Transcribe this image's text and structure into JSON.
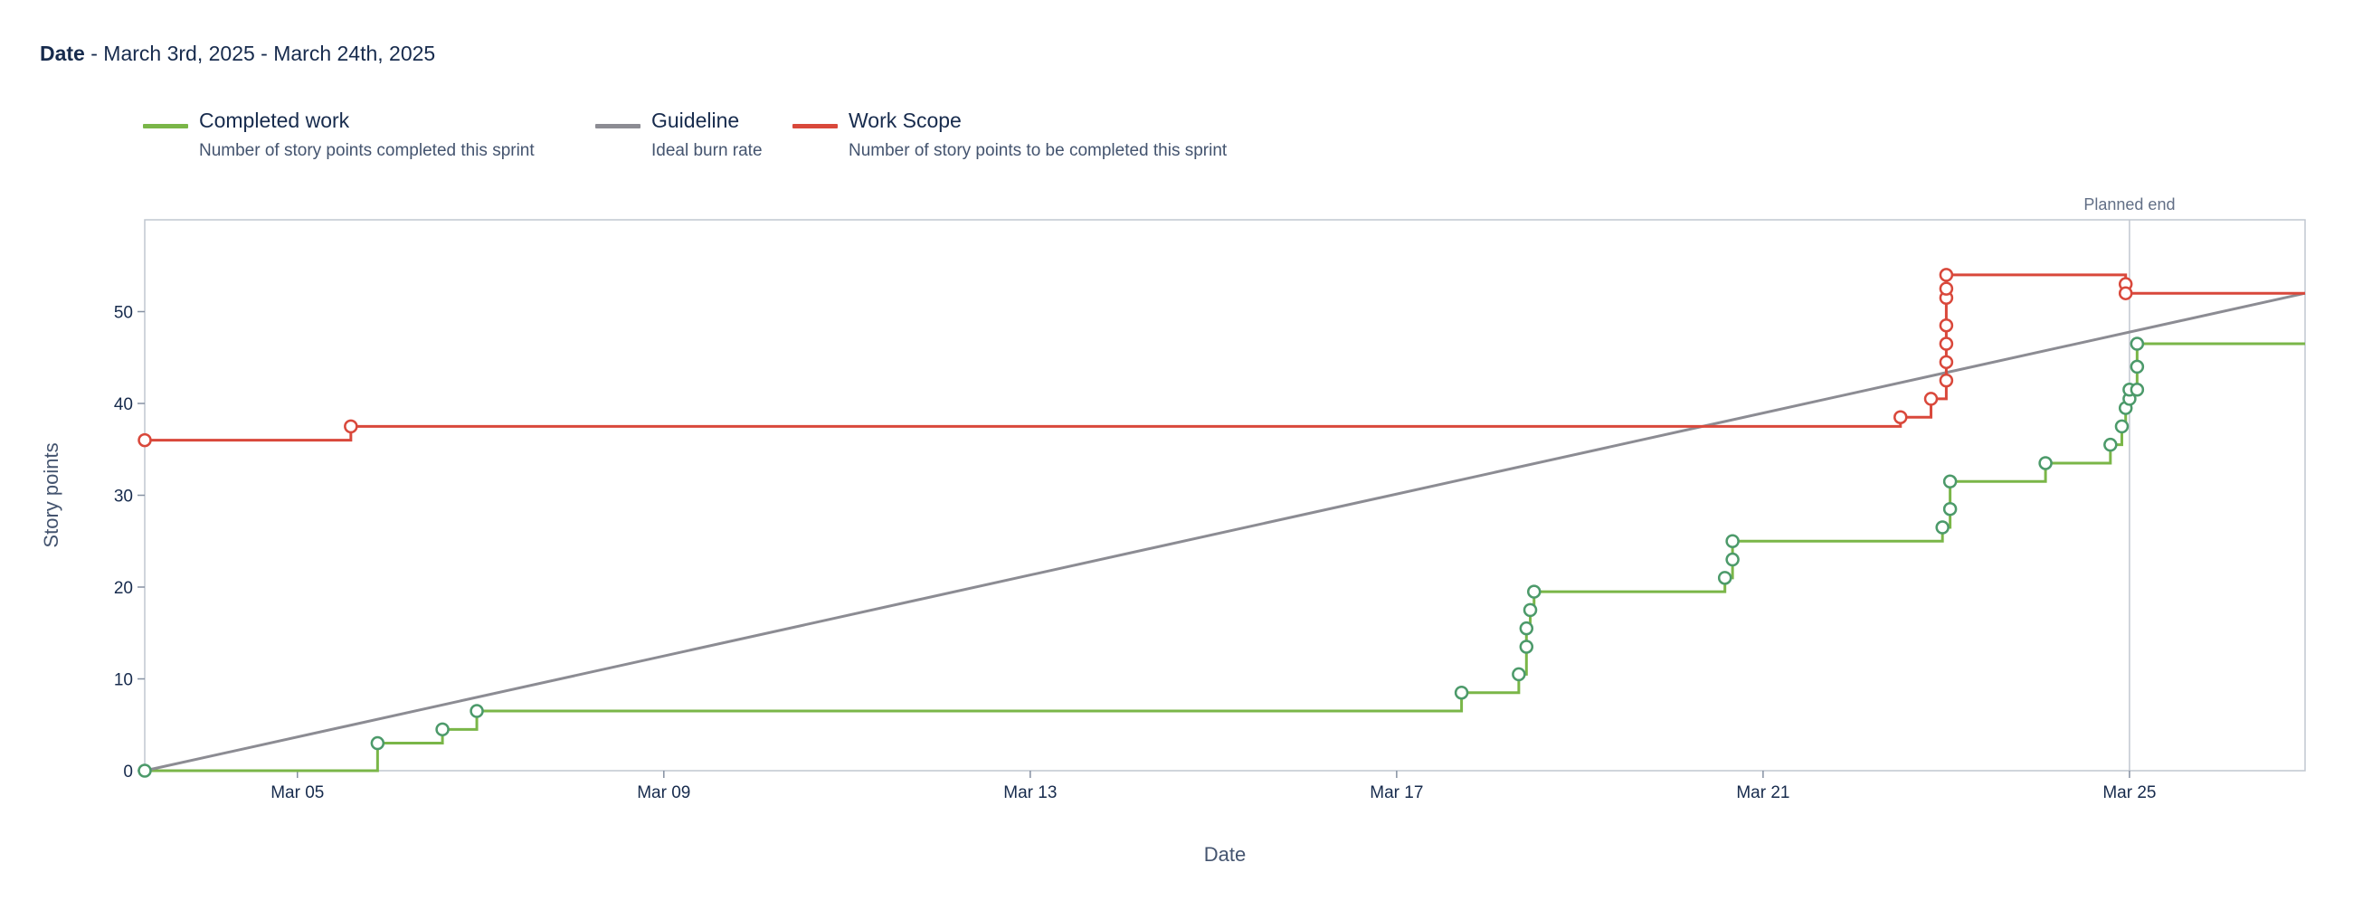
{
  "header": {
    "date_label": "Date",
    "date_range": " - March 3rd, 2025 - March 24th, 2025"
  },
  "legend": [
    {
      "title": "Completed work",
      "description": "Number of story points completed this sprint",
      "color": "#7ab648"
    },
    {
      "title": "Guideline",
      "description": "Ideal burn rate",
      "color": "#8c8c93"
    },
    {
      "title": "Work Scope",
      "description": "Number of story points to be completed this sprint",
      "color": "#d9483b"
    }
  ],
  "chart_data": {
    "type": "line",
    "title": "",
    "xlabel": "Date",
    "ylabel": "Story points",
    "x_tick_labels": [
      "Mar 05",
      "Mar 09",
      "Mar 13",
      "Mar 17",
      "Mar 21",
      "Mar 25"
    ],
    "x_ticks": [
      "2025-03-05",
      "2025-03-09",
      "2025-03-13",
      "2025-03-17",
      "2025-03-21",
      "2025-03-25"
    ],
    "xlim": [
      "2025-03-03T08:00",
      "2025-03-26T22:00"
    ],
    "ylim": [
      0,
      60
    ],
    "y_ticks": [
      0,
      10,
      20,
      30,
      40,
      50
    ],
    "grid": false,
    "annotation": {
      "label": "Planned end",
      "x": "2025-03-25T00:00"
    },
    "series": [
      {
        "name": "Completed work",
        "style": "step",
        "color": "#7ab648",
        "marker_color": "#4c9a6a",
        "points": [
          [
            "2025-03-03T08:00",
            0
          ],
          [
            "2025-03-05T21:00",
            3
          ],
          [
            "2025-03-06T14:00",
            4.5
          ],
          [
            "2025-03-06T23:00",
            6.5
          ],
          [
            "2025-03-17T17:00",
            8.5
          ],
          [
            "2025-03-18T08:00",
            10.5
          ],
          [
            "2025-03-18T10:00",
            13.5
          ],
          [
            "2025-03-18T10:00",
            15.5
          ],
          [
            "2025-03-18T11:00",
            17.5
          ],
          [
            "2025-03-18T12:00",
            19.5
          ],
          [
            "2025-03-20T14:00",
            21
          ],
          [
            "2025-03-20T16:00",
            23
          ],
          [
            "2025-03-20T16:00",
            25
          ],
          [
            "2025-03-22T23:00",
            26.5
          ],
          [
            "2025-03-23T01:00",
            28.5
          ],
          [
            "2025-03-23T01:00",
            31.5
          ],
          [
            "2025-03-24T02:00",
            33.5
          ],
          [
            "2025-03-24T19:00",
            35.5
          ],
          [
            "2025-03-24T22:00",
            37.5
          ],
          [
            "2025-03-24T23:00",
            39.5
          ],
          [
            "2025-03-25T00:00",
            40.5
          ],
          [
            "2025-03-25T00:00",
            41.5
          ],
          [
            "2025-03-25T02:00",
            41.5
          ],
          [
            "2025-03-25T02:00",
            44
          ],
          [
            "2025-03-25T02:00",
            46.5
          ]
        ],
        "end_x": "2025-03-26T22:00"
      },
      {
        "name": "Guideline",
        "style": "linear",
        "color": "#8c8c93",
        "points": [
          [
            "2025-03-03T08:00",
            0
          ],
          [
            "2025-03-26T22:00",
            52
          ]
        ]
      },
      {
        "name": "Work Scope",
        "style": "step",
        "color": "#d9483b",
        "marker_color": "#d9483b",
        "points": [
          [
            "2025-03-03T08:00",
            36
          ],
          [
            "2025-03-05T14:00",
            37.5
          ],
          [
            "2025-03-22T12:00",
            38.5
          ],
          [
            "2025-03-22T20:00",
            40.5
          ],
          [
            "2025-03-23T00:00",
            42.5
          ],
          [
            "2025-03-23T00:00",
            44.5
          ],
          [
            "2025-03-23T00:00",
            46.5
          ],
          [
            "2025-03-23T00:00",
            48.5
          ],
          [
            "2025-03-23T00:00",
            51.5
          ],
          [
            "2025-03-23T00:00",
            52.5
          ],
          [
            "2025-03-23T00:00",
            54
          ],
          [
            "2025-03-24T23:00",
            53
          ],
          [
            "2025-03-24T23:00",
            52
          ]
        ],
        "end_x": "2025-03-26T22:00"
      }
    ]
  }
}
